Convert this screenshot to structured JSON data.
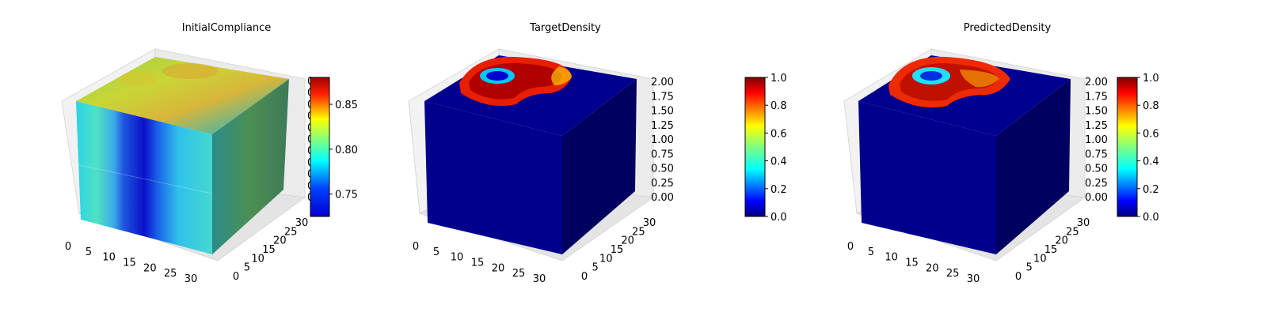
{
  "chart_data": [
    {
      "type": "heatmap",
      "title": "InitialCompliance",
      "x_ticks": [
        "0",
        "5",
        "10",
        "15",
        "20",
        "25",
        "30"
      ],
      "y_ticks": [
        "0",
        "5",
        "10",
        "15",
        "20",
        "25",
        "30"
      ],
      "z_ticks": [
        "0",
        "0",
        "0",
        "0",
        "0",
        "0",
        "0",
        "0",
        "0",
        "0",
        "0"
      ],
      "colorbar": {
        "ticks": [
          "0.75",
          "0.80",
          "0.85"
        ],
        "range": [
          0.725,
          0.88
        ]
      },
      "colormap": "jet",
      "grid": true
    },
    {
      "type": "heatmap",
      "title": "TargetDensity",
      "x_ticks": [
        "0",
        "5",
        "10",
        "15",
        "20",
        "25",
        "30"
      ],
      "y_ticks": [
        "0",
        "5",
        "10",
        "15",
        "20",
        "25",
        "30"
      ],
      "z_ticks": [
        "0.00",
        "0.25",
        "0.50",
        "0.75",
        "1.00",
        "1.25",
        "1.50",
        "1.75",
        "2.00"
      ],
      "colorbar": {
        "ticks": [
          "0.0",
          "0.2",
          "0.4",
          "0.6",
          "0.8",
          "1.0"
        ],
        "range": [
          0,
          1
        ]
      },
      "colormap": "jet",
      "grid": true
    },
    {
      "type": "heatmap",
      "title": "PredictedDensity",
      "x_ticks": [
        "0",
        "5",
        "10",
        "15",
        "20",
        "25",
        "30"
      ],
      "y_ticks": [
        "0",
        "5",
        "10",
        "15",
        "20",
        "25",
        "30"
      ],
      "z_ticks": [
        "0.00",
        "0.25",
        "0.50",
        "0.75",
        "1.00",
        "1.25",
        "1.50",
        "1.75",
        "2.00"
      ],
      "colorbar": {
        "ticks": [
          "0.0",
          "0.2",
          "0.4",
          "0.6",
          "0.8",
          "1.0"
        ],
        "range": [
          0,
          1
        ]
      },
      "colormap": "jet",
      "grid": true
    }
  ],
  "colors": {
    "jet_stops": [
      "#00007f",
      "#0000ff",
      "#007fff",
      "#00ffff",
      "#7fff7f",
      "#ffff00",
      "#ff7f00",
      "#ff0000",
      "#7f0000"
    ],
    "background": "#ffffff"
  }
}
